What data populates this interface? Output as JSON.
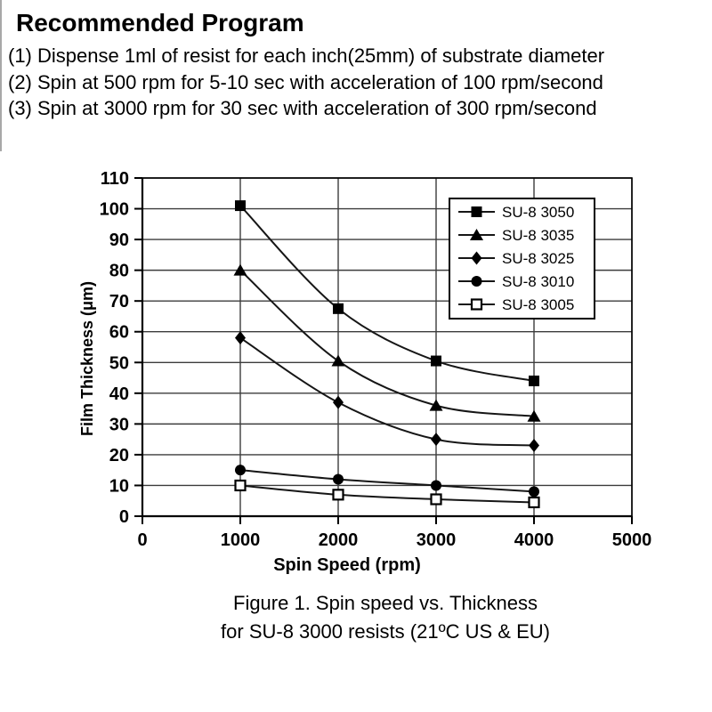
{
  "header": {
    "title": "Recommended Program",
    "instructions": [
      "(1) Dispense 1ml of resist for each inch(25mm) of substrate diameter",
      "(2) Spin at 500 rpm for 5-10 sec with acceleration of 100 rpm/second",
      "(3) Spin at 3000 rpm for 30 sec with acceleration of 300 rpm/second"
    ]
  },
  "figure_caption": {
    "line1": "Figure 1. Spin speed vs. Thickness",
    "line2": "for SU-8 3000 resists (21ºC US & EU)"
  },
  "chart_data": {
    "type": "line",
    "title": "",
    "xlabel": "Spin Speed (rpm)",
    "ylabel": "Film Thickness (μm)",
    "x": [
      1000,
      2000,
      3000,
      4000
    ],
    "xlim": [
      0,
      5000
    ],
    "ylim": [
      0,
      110
    ],
    "x_ticks": [
      0,
      1000,
      2000,
      3000,
      4000,
      5000
    ],
    "y_ticks": [
      0,
      10,
      20,
      30,
      40,
      50,
      60,
      70,
      80,
      90,
      100,
      110
    ],
    "grid": true,
    "legend_position": "upper-right-inside",
    "series": [
      {
        "name": "SU-8 3050",
        "marker": "filled-square",
        "values": [
          101,
          67.5,
          50.5,
          44
        ]
      },
      {
        "name": "SU-8 3035",
        "marker": "filled-triangle",
        "values": [
          80,
          50.5,
          36,
          32.5
        ]
      },
      {
        "name": "SU-8 3025",
        "marker": "filled-diamond",
        "values": [
          58,
          37,
          25,
          23
        ]
      },
      {
        "name": "SU-8 3010",
        "marker": "filled-circle",
        "values": [
          15,
          12,
          10,
          8
        ]
      },
      {
        "name": "SU-8 3005",
        "marker": "open-square",
        "values": [
          10,
          7,
          5.5,
          4.5
        ]
      }
    ]
  },
  "colors": {
    "foreground": "#000000",
    "background": "#ffffff",
    "grid": "#3c3c3c",
    "series_line": "#161616"
  }
}
